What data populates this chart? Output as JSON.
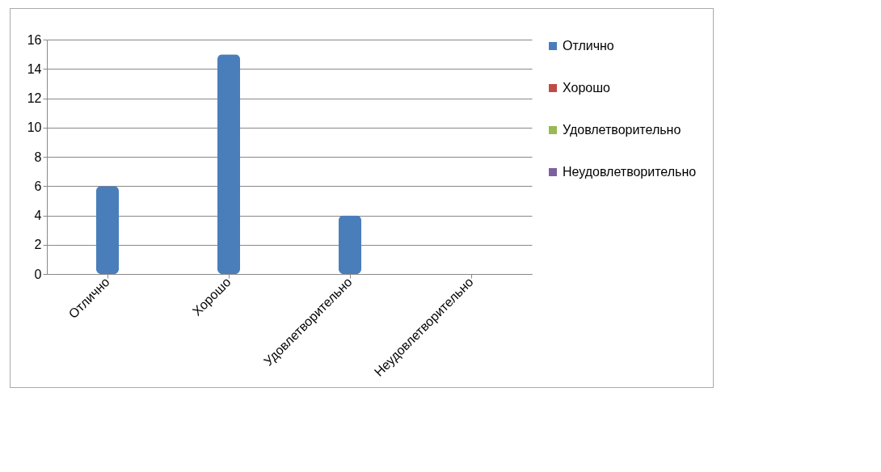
{
  "chart_data": {
    "type": "bar",
    "categories": [
      "Отлично",
      "Хорошо",
      "Удовлетворительно",
      "Неудовлетворительно"
    ],
    "series": [
      {
        "name": "Отлично",
        "color": "#4a7ebb",
        "values": [
          6,
          15,
          4,
          0
        ]
      },
      {
        "name": "Хорошо",
        "color": "#be4b48",
        "values": [
          null,
          null,
          null,
          null
        ]
      },
      {
        "name": "Удовлетворительно",
        "color": "#98b954",
        "values": [
          null,
          null,
          null,
          null
        ]
      },
      {
        "name": "Неудовлетворительно",
        "color": "#7d60a0",
        "values": [
          null,
          null,
          null,
          null
        ]
      }
    ],
    "ylim": [
      0,
      16
    ],
    "yticks": [
      0,
      2,
      4,
      6,
      8,
      10,
      12,
      14,
      16
    ],
    "grid": "y",
    "legend": "right"
  }
}
